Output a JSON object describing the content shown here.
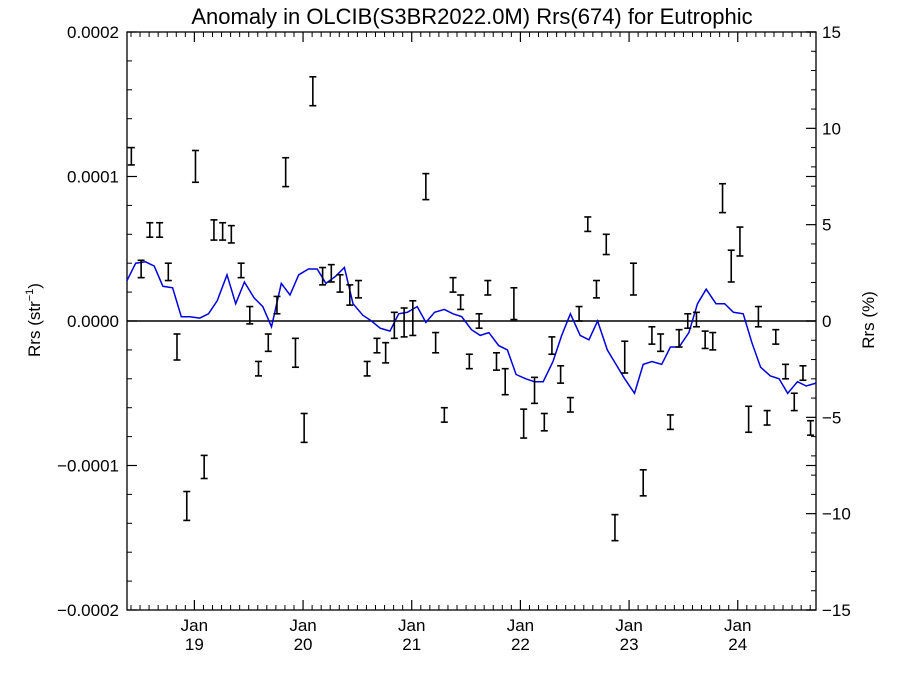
{
  "chart_data": {
    "type": "scatter",
    "title": "Anomaly in OLCIB(S3BR2022.0M) Rrs(674) for Eutrophic",
    "ylabel_left_base": "Rrs (str",
    "ylabel_left_sup": "−1",
    "ylabel_left_close": ")",
    "ylabel_right": "Rrs (%)",
    "xlim": [
      2018.38,
      2024.72
    ],
    "ylim_left": [
      -0.0002,
      0.0002
    ],
    "ylim_right": [
      -15,
      15
    ],
    "colors": {
      "monthly": "#000000",
      "running_mean": "#0000dd",
      "zero_line": "#000000"
    },
    "x_ticks": [
      {
        "value": 2019.0,
        "month": "Jan",
        "year": "19"
      },
      {
        "value": 2020.0,
        "month": "Jan",
        "year": "20"
      },
      {
        "value": 2021.0,
        "month": "Jan",
        "year": "21"
      },
      {
        "value": 2022.0,
        "month": "Jan",
        "year": "22"
      },
      {
        "value": 2023.0,
        "month": "Jan",
        "year": "23"
      },
      {
        "value": 2024.0,
        "month": "Jan",
        "year": "24"
      }
    ],
    "y_ticks_left": [
      {
        "value": 0.0002,
        "label": "0.0002"
      },
      {
        "value": 0.0001,
        "label": "0.0001"
      },
      {
        "value": 0.0,
        "label": "0.0000"
      },
      {
        "value": -0.0001,
        "label": "−0.0001"
      },
      {
        "value": -0.0002,
        "label": "−0.0002"
      }
    ],
    "y_ticks_right": [
      {
        "value": 15,
        "label": "15"
      },
      {
        "value": 10,
        "label": "10"
      },
      {
        "value": 5,
        "label": "5"
      },
      {
        "value": 0,
        "label": "0"
      },
      {
        "value": -5,
        "label": "−5"
      },
      {
        "value": -10,
        "label": "−10"
      },
      {
        "value": -15,
        "label": "−15"
      }
    ],
    "monthly_anomaly": [
      {
        "x": 2018.42,
        "y": 0.000114,
        "err": 6e-06
      },
      {
        "x": 2018.51,
        "y": 3.6e-05,
        "err": 6e-06
      },
      {
        "x": 2018.59,
        "y": 6.3e-05,
        "err": 5e-06
      },
      {
        "x": 2018.68,
        "y": 6.3e-05,
        "err": 5e-06
      },
      {
        "x": 2018.76,
        "y": 3.4e-05,
        "err": 6e-06
      },
      {
        "x": 2018.84,
        "y": -1.8e-05,
        "err": 9e-06
      },
      {
        "x": 2018.93,
        "y": -0.000128,
        "err": 1e-05
      },
      {
        "x": 2019.01,
        "y": 0.000107,
        "err": 1.1e-05
      },
      {
        "x": 2019.09,
        "y": -0.000101,
        "err": 8e-06
      },
      {
        "x": 2019.18,
        "y": 6.3e-05,
        "err": 7e-06
      },
      {
        "x": 2019.26,
        "y": 6.2e-05,
        "err": 6e-06
      },
      {
        "x": 2019.34,
        "y": 6e-05,
        "err": 6e-06
      },
      {
        "x": 2019.43,
        "y": 3.5e-05,
        "err": 5e-06
      },
      {
        "x": 2019.51,
        "y": 4e-06,
        "err": 6e-06
      },
      {
        "x": 2019.59,
        "y": -3.3e-05,
        "err": 5e-06
      },
      {
        "x": 2019.68,
        "y": -1.5e-05,
        "err": 6e-06
      },
      {
        "x": 2019.76,
        "y": 1.1e-05,
        "err": 6e-06
      },
      {
        "x": 2019.84,
        "y": 0.000103,
        "err": 1e-05
      },
      {
        "x": 2019.93,
        "y": -2.2e-05,
        "err": 1e-05
      },
      {
        "x": 2020.01,
        "y": -7.4e-05,
        "err": 1e-05
      },
      {
        "x": 2020.09,
        "y": 0.000159,
        "err": 1e-05
      },
      {
        "x": 2020.18,
        "y": 3.1e-05,
        "err": 6e-06
      },
      {
        "x": 2020.26,
        "y": 3.3e-05,
        "err": 6e-06
      },
      {
        "x": 2020.34,
        "y": 2.6e-05,
        "err": 6e-06
      },
      {
        "x": 2020.43,
        "y": 1.8e-05,
        "err": 7e-06
      },
      {
        "x": 2020.51,
        "y": 2.2e-05,
        "err": 6e-06
      },
      {
        "x": 2020.59,
        "y": -3.3e-05,
        "err": 5e-06
      },
      {
        "x": 2020.68,
        "y": -1.7e-05,
        "err": 5e-06
      },
      {
        "x": 2020.76,
        "y": -2.2e-05,
        "err": 7e-06
      },
      {
        "x": 2020.84,
        "y": -3e-06,
        "err": 9e-06
      },
      {
        "x": 2020.93,
        "y": -1e-06,
        "err": 1e-05
      },
      {
        "x": 2021.01,
        "y": 2e-06,
        "err": 1.2e-05
      },
      {
        "x": 2021.13,
        "y": 9.3e-05,
        "err": 9e-06
      },
      {
        "x": 2021.22,
        "y": -1.5e-05,
        "err": 7e-06
      },
      {
        "x": 2021.3,
        "y": -6.5e-05,
        "err": 5e-06
      },
      {
        "x": 2021.38,
        "y": 2.5e-05,
        "err": 5e-06
      },
      {
        "x": 2021.45,
        "y": 1.3e-05,
        "err": 5e-06
      },
      {
        "x": 2021.53,
        "y": -2.8e-05,
        "err": 5e-06
      },
      {
        "x": 2021.62,
        "y": 0.0,
        "err": 5e-06
      },
      {
        "x": 2021.7,
        "y": 2.3e-05,
        "err": 5e-06
      },
      {
        "x": 2021.78,
        "y": -2.8e-05,
        "err": 6e-06
      },
      {
        "x": 2021.86,
        "y": -4.2e-05,
        "err": 9e-06
      },
      {
        "x": 2021.94,
        "y": 1.2e-05,
        "err": 1.1e-05
      },
      {
        "x": 2022.03,
        "y": -7.1e-05,
        "err": 1e-05
      },
      {
        "x": 2022.13,
        "y": -4.8e-05,
        "err": 9e-06
      },
      {
        "x": 2022.22,
        "y": -7e-05,
        "err": 6e-06
      },
      {
        "x": 2022.29,
        "y": -1.7e-05,
        "err": 6e-06
      },
      {
        "x": 2022.37,
        "y": -3.7e-05,
        "err": 6e-06
      },
      {
        "x": 2022.46,
        "y": -5.8e-05,
        "err": 5e-06
      },
      {
        "x": 2022.54,
        "y": 5e-06,
        "err": 5e-06
      },
      {
        "x": 2022.62,
        "y": 6.7e-05,
        "err": 5e-06
      },
      {
        "x": 2022.7,
        "y": 2.2e-05,
        "err": 6e-06
      },
      {
        "x": 2022.79,
        "y": 5.3e-05,
        "err": 7e-06
      },
      {
        "x": 2022.87,
        "y": -0.000143,
        "err": 9e-06
      },
      {
        "x": 2022.96,
        "y": -2.5e-05,
        "err": 1.1e-05
      },
      {
        "x": 2023.04,
        "y": 2.9e-05,
        "err": 1.1e-05
      },
      {
        "x": 2023.13,
        "y": -0.000112,
        "err": 9e-06
      },
      {
        "x": 2023.21,
        "y": -1e-05,
        "err": 6e-06
      },
      {
        "x": 2023.29,
        "y": -1.5e-05,
        "err": 6e-06
      },
      {
        "x": 2023.38,
        "y": -7e-05,
        "err": 5e-06
      },
      {
        "x": 2023.46,
        "y": -1.2e-05,
        "err": 6e-06
      },
      {
        "x": 2023.54,
        "y": 0.0,
        "err": 5e-06
      },
      {
        "x": 2023.62,
        "y": 1e-06,
        "err": 5e-06
      },
      {
        "x": 2023.7,
        "y": -1.3e-05,
        "err": 6e-06
      },
      {
        "x": 2023.77,
        "y": -1.4e-05,
        "err": 6e-06
      },
      {
        "x": 2023.86,
        "y": 8.5e-05,
        "err": 1e-05
      },
      {
        "x": 2023.94,
        "y": 3.8e-05,
        "err": 1.1e-05
      },
      {
        "x": 2024.02,
        "y": 5.5e-05,
        "err": 1e-05
      },
      {
        "x": 2024.1,
        "y": -6.8e-05,
        "err": 9e-06
      },
      {
        "x": 2024.19,
        "y": 3e-06,
        "err": 7e-06
      },
      {
        "x": 2024.27,
        "y": -6.7e-05,
        "err": 5e-06
      },
      {
        "x": 2024.35,
        "y": -1.1e-05,
        "err": 5e-06
      },
      {
        "x": 2024.44,
        "y": -3.5e-05,
        "err": 5e-06
      },
      {
        "x": 2024.52,
        "y": -5.6e-05,
        "err": 6e-06
      },
      {
        "x": 2024.6,
        "y": -3.6e-05,
        "err": 5e-06
      },
      {
        "x": 2024.67,
        "y": -7.4e-05,
        "err": 5e-06
      }
    ],
    "running_mean": {
      "x": [
        2018.38,
        2018.46,
        2018.55,
        2018.63,
        2018.71,
        2018.8,
        2018.88,
        2018.96,
        2019.05,
        2019.13,
        2019.21,
        2019.3,
        2019.38,
        2019.46,
        2019.55,
        2019.63,
        2019.71,
        2019.8,
        2019.88,
        2019.96,
        2020.05,
        2020.13,
        2020.21,
        2020.3,
        2020.38,
        2020.46,
        2020.55,
        2020.63,
        2020.71,
        2020.8,
        2020.88,
        2020.96,
        2021.05,
        2021.13,
        2021.21,
        2021.3,
        2021.38,
        2021.46,
        2021.55,
        2021.63,
        2021.71,
        2021.8,
        2021.88,
        2021.96,
        2022.05,
        2022.13,
        2022.21,
        2022.3,
        2022.38,
        2022.46,
        2022.55,
        2022.63,
        2022.71,
        2022.8,
        2022.88,
        2022.96,
        2023.05,
        2023.13,
        2023.21,
        2023.3,
        2023.38,
        2023.46,
        2023.55,
        2023.63,
        2023.71,
        2023.8,
        2023.88,
        2023.96,
        2024.05,
        2024.13,
        2024.21,
        2024.3,
        2024.38,
        2024.46,
        2024.55,
        2024.63,
        2024.72
      ],
      "y": [
        2.8e-05,
        4e-05,
        4.1e-05,
        3.8e-05,
        2.4e-05,
        2.3e-05,
        3e-06,
        3e-06,
        2e-06,
        5e-06,
        1.4e-05,
        3.2e-05,
        1.2e-05,
        2.7e-05,
        1.6e-05,
        1e-05,
        -4e-06,
        2.6e-05,
        1.8e-05,
        3.2e-05,
        3.6e-05,
        3.6e-05,
        2.6e-05,
        3.1e-05,
        3.7e-05,
        1.2e-05,
        4e-06,
        0.0,
        -5e-06,
        -7e-06,
        5e-06,
        6e-06,
        1e-05,
        -1e-06,
        6e-06,
        8e-06,
        5e-06,
        3e-06,
        -6e-06,
        -1e-05,
        -8e-06,
        -1.7e-05,
        -2e-05,
        -3.7e-05,
        -4e-05,
        -4.2e-05,
        -4.2e-05,
        -2.8e-05,
        -1e-05,
        5e-06,
        -1e-05,
        -1.3e-05,
        0.0,
        -2e-05,
        -3e-05,
        -4e-05,
        -5e-05,
        -3e-05,
        -2.8e-05,
        -3e-05,
        -1.8e-05,
        -1.8e-05,
        -8e-06,
        1.2e-05,
        2.2e-05,
        1.2e-05,
        1.2e-05,
        6e-06,
        5e-06,
        -1.5e-05,
        -3.2e-05,
        -3.8e-05,
        -4e-05,
        -5e-05,
        -4.2e-05,
        -4.5e-05,
        -4.3e-05
      ]
    }
  }
}
